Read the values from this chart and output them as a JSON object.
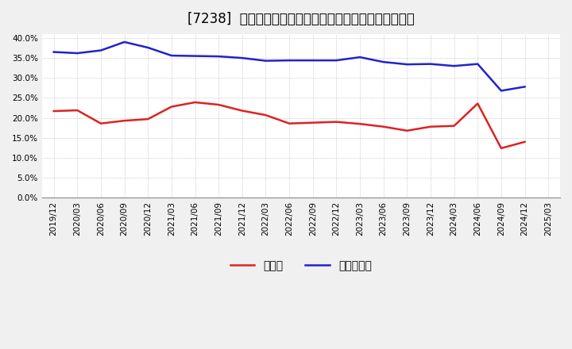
{
  "title": "[7238]  現預金、有利子負債の総資産に対する比率の推移",
  "x_labels": [
    "2019/12",
    "2020/03",
    "2020/06",
    "2020/09",
    "2020/12",
    "2021/03",
    "2021/06",
    "2021/09",
    "2021/12",
    "2022/03",
    "2022/06",
    "2022/09",
    "2022/12",
    "2023/03",
    "2023/06",
    "2023/09",
    "2023/12",
    "2024/03",
    "2024/06",
    "2024/09",
    "2024/12",
    "2025/03"
  ],
  "cash": [
    0.217,
    0.219,
    0.186,
    0.193,
    0.197,
    0.228,
    0.239,
    0.233,
    0.218,
    0.207,
    0.186,
    0.188,
    0.19,
    0.185,
    0.178,
    0.168,
    0.178,
    0.18,
    0.236,
    0.124,
    0.14,
    null
  ],
  "debt": [
    0.365,
    0.362,
    0.369,
    0.39,
    0.376,
    0.356,
    0.355,
    0.354,
    0.35,
    0.343,
    0.344,
    0.344,
    0.344,
    0.352,
    0.34,
    0.334,
    0.335,
    0.33,
    0.335,
    0.268,
    0.278,
    null
  ],
  "cash_color": "#dd2222",
  "debt_color": "#2222cc",
  "bg_color": "#f0f0f0",
  "plot_bg_color": "#ffffff",
  "grid_color": "#aaaaaa",
  "ylim": [
    0.0,
    0.41
  ],
  "yticks": [
    0.0,
    0.05,
    0.1,
    0.15,
    0.2,
    0.25,
    0.3,
    0.35,
    0.4
  ],
  "legend_cash": "現預金",
  "legend_debt": "有利子負債",
  "title_fontsize": 12,
  "label_fontsize": 7.5,
  "legend_fontsize": 10
}
